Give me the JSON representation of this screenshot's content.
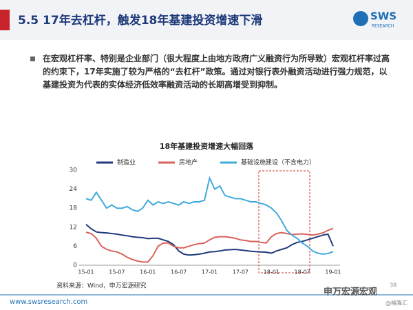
{
  "header": {
    "title": "5.5 17年去杠杆，触发18年基建投资增速下滑",
    "logo": "SWS",
    "logo_sub": "RESEARCH"
  },
  "bullet": "在宏观杠杆率、特别是企业部门（很大程度上由地方政府广义融资行为所导致）宏观杠杆率过高的约束下，17年实施了较为严格的“去杠杆”政策。通过对银行表外融资活动进行强力规范，以基建投资为代表的实体经济低效率融资活动的长期高增受到抑制。",
  "chart_data": {
    "type": "line",
    "title": "18年基建投资增速大幅回落",
    "categories": [
      "15-01",
      null,
      null,
      null,
      null,
      null,
      "15-07",
      null,
      null,
      null,
      null,
      null,
      "16-01",
      null,
      null,
      null,
      null,
      null,
      "16-07",
      null,
      null,
      null,
      null,
      null,
      "17-01",
      null,
      null,
      null,
      null,
      null,
      "17-07",
      null,
      null,
      null,
      null,
      null,
      "18-01",
      null,
      null,
      null,
      null,
      null,
      "18-07",
      null,
      null,
      null,
      null,
      null,
      "19-01"
    ],
    "series": [
      {
        "name": "制造业",
        "color": "#1f3a7a",
        "values": [
          12.9,
          11.5,
          10.5,
          10.3,
          10.2,
          10,
          9.8,
          9.5,
          9.3,
          9.0,
          8.8,
          8.7,
          8.4,
          8.5,
          8.5,
          8.0,
          7.5,
          6.5,
          4.5,
          3.5,
          3.2,
          3.3,
          3.5,
          3.8,
          4.2,
          4.3,
          4.5,
          4.8,
          4.9,
          5.0,
          4.8,
          4.6,
          4.4,
          4.3,
          4.2,
          4.1,
          3.8,
          4.5,
          5.0,
          5.5,
          6.5,
          7.2,
          7.5,
          8.0,
          8.5,
          9.0,
          9.5,
          9.8,
          6.0
        ]
      },
      {
        "name": "房地产",
        "color": "#d9625a",
        "values": [
          10.4,
          10.0,
          8.5,
          6.0,
          5.0,
          4.5,
          4.2,
          3.5,
          2.5,
          1.8,
          1.3,
          1.0,
          1.0,
          3.0,
          6.0,
          7.0,
          7.0,
          6.0,
          5.5,
          5.5,
          6.0,
          6.5,
          6.8,
          7.0,
          8.0,
          8.8,
          9.0,
          9.0,
          8.8,
          8.5,
          8.0,
          7.8,
          7.5,
          7.5,
          7.2,
          7.0,
          9.0,
          10.0,
          10.3,
          10.0,
          9.7,
          9.8,
          9.9,
          9.7,
          9.5,
          9.8,
          10.2,
          11.0,
          11.6
        ]
      },
      {
        "name": "基础设施建设（不含电力）",
        "color": "#3fa9dc",
        "values": [
          21.0,
          20.5,
          23.0,
          20.5,
          18.0,
          19.0,
          18.0,
          18.0,
          18.5,
          17.5,
          17.0,
          18.0,
          20.5,
          19.0,
          20.0,
          19.5,
          20.0,
          19.5,
          19.0,
          20.0,
          19.5,
          20.0,
          20.0,
          20.5,
          27.5,
          24.0,
          25.0,
          22.0,
          21.5,
          21.0,
          21.0,
          20.5,
          20.0,
          20.0,
          19.5,
          19.0,
          18.0,
          16.5,
          14.0,
          11.0,
          9.5,
          8.5,
          7.0,
          6.0,
          4.5,
          3.8,
          3.5,
          3.7,
          4.3
        ]
      }
    ],
    "ylim": [
      0,
      30
    ],
    "yticks": [
      0,
      6,
      12,
      18,
      24,
      30
    ],
    "grid": false
  },
  "source": "资料来源：Wind，申万宏源研究",
  "footer": {
    "url": "www.swsresearch.com",
    "page": "38",
    "watermark": "申万宏源宏观",
    "credit": "@格隆汇"
  }
}
